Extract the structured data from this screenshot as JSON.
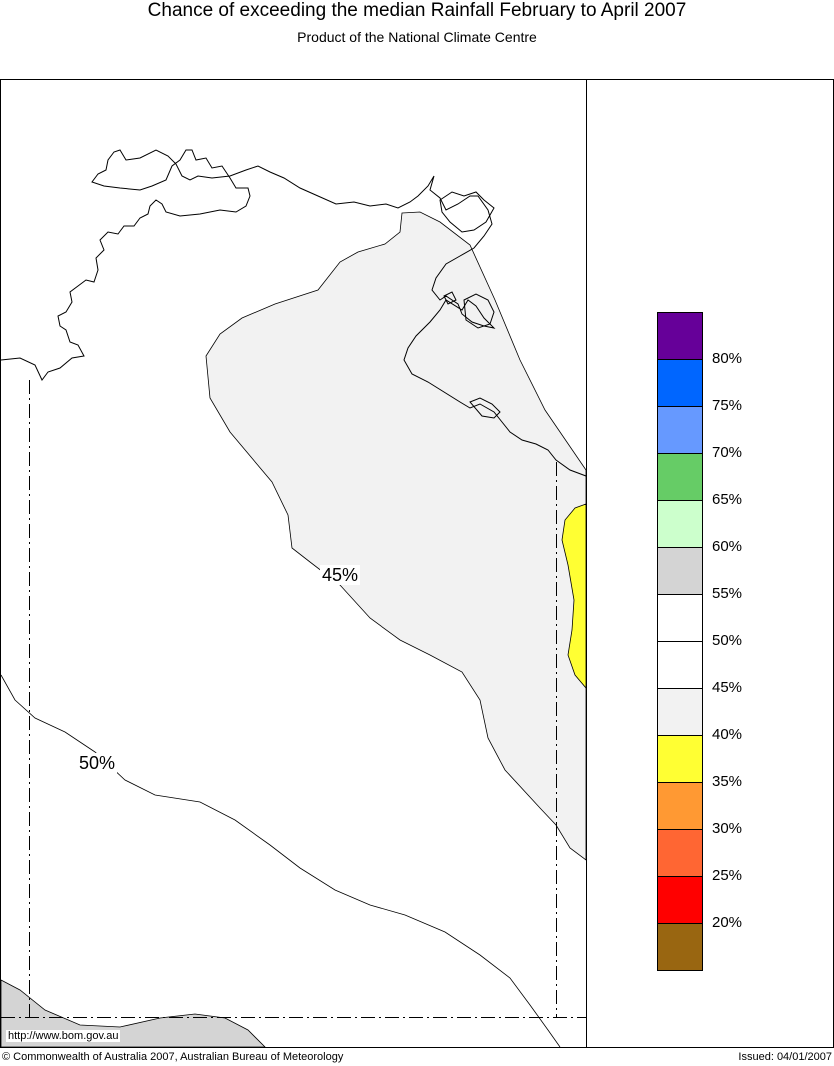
{
  "header": {
    "title": "Chance of exceeding the median Rainfall February to April 2007",
    "subtitle": "Product of the National Climate Centre"
  },
  "map": {
    "contour_labels": [
      "45%",
      "50%"
    ],
    "url": "http://www.bom.gov.au"
  },
  "legend": {
    "colors": [
      "#660099",
      "#0066ff",
      "#6699ff",
      "#66cc66",
      "#ccffcc",
      "#d4d4d4",
      "#ffffff",
      "#ffffff",
      "#f2f2f2",
      "#ffff33",
      "#ff9933",
      "#ff6633",
      "#ff0000",
      "#996611"
    ],
    "labels": [
      "80%",
      "75%",
      "70%",
      "65%",
      "60%",
      "55%",
      "50%",
      "45%",
      "40%",
      "35%",
      "30%",
      "25%",
      "20%"
    ]
  },
  "footer": {
    "copyright": "© Commonwealth of Australia 2007, Australian Bureau of Meteorology",
    "issued": "Issued: 04/01/2007"
  }
}
